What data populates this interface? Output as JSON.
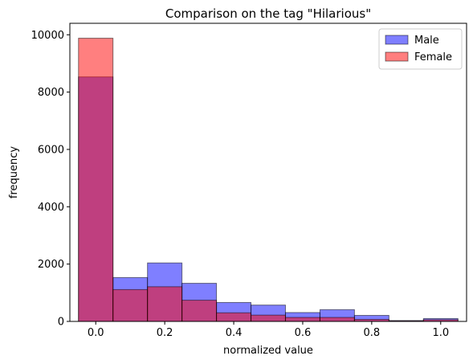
{
  "chart_data": {
    "type": "bar",
    "subtype": "overlapping-histogram",
    "title": "Comparison on the tag \"Hilarious\"",
    "xlabel": "normalized value",
    "ylabel": "frequency",
    "xlim": [
      -0.075,
      1.075
    ],
    "ylim": [
      0,
      10400
    ],
    "xticks": [
      0.0,
      0.2,
      0.4,
      0.6,
      0.8,
      1.0
    ],
    "xtick_labels": [
      "0.0",
      "0.2",
      "0.4",
      "0.6",
      "0.8",
      "1.0"
    ],
    "yticks": [
      0,
      2000,
      4000,
      6000,
      8000,
      10000
    ],
    "ytick_labels": [
      "0",
      "2000",
      "4000",
      "6000",
      "8000",
      "10000"
    ],
    "bin_edges": [
      -0.05,
      0.05,
      0.15,
      0.25,
      0.35,
      0.45,
      0.55,
      0.65,
      0.75,
      0.85,
      0.95,
      1.05
    ],
    "series": [
      {
        "name": "Male",
        "color": "#0000ff",
        "alpha": 0.5,
        "values": [
          8530,
          1530,
          2040,
          1330,
          660,
          570,
          310,
          410,
          210,
          30,
          100
        ]
      },
      {
        "name": "Female",
        "color": "#ff0000",
        "alpha": 0.5,
        "values": [
          9880,
          1110,
          1210,
          740,
          300,
          220,
          140,
          140,
          70,
          20,
          60
        ]
      }
    ],
    "legend": {
      "position": "top-right",
      "entries": [
        "Male",
        "Female"
      ]
    },
    "grid": false
  }
}
